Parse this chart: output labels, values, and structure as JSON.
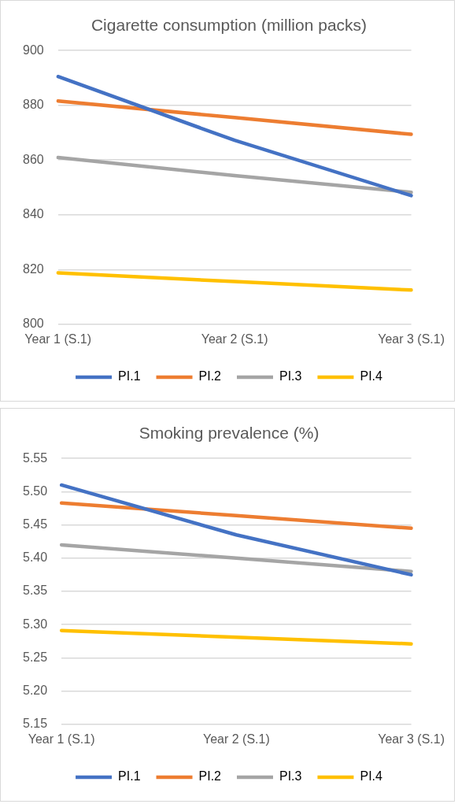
{
  "chart_data": [
    {
      "type": "line",
      "title": "Cigarette consumption (million packs)",
      "categories": [
        "Year 1 (S.1)",
        "Year 2 (S.1)",
        "Year 3 (S.1)"
      ],
      "series": [
        {
          "name": "PI.1",
          "color": "#4472c4",
          "values": [
            890.5,
            867.2,
            847.0
          ]
        },
        {
          "name": "PI.2",
          "color": "#ed7d31",
          "values": [
            881.6,
            875.5,
            869.4
          ]
        },
        {
          "name": "PI.3",
          "color": "#a5a5a5",
          "values": [
            860.9,
            854.3,
            848.2
          ]
        },
        {
          "name": "PI.4",
          "color": "#ffc000",
          "values": [
            818.8,
            815.6,
            812.5
          ]
        }
      ],
      "ylim": [
        800,
        900
      ],
      "yticks": [
        800,
        820,
        840,
        860,
        880,
        900
      ],
      "grid": "y",
      "legend": "bottom",
      "marker": "none",
      "line_style": "solid"
    },
    {
      "type": "line",
      "title": "Smoking prevalence (%)",
      "categories": [
        "Year 1 (S.1)",
        "Year 2 (S.1)",
        "Year 3 (S.1)"
      ],
      "series": [
        {
          "name": "PI.1",
          "color": "#4472c4",
          "values": [
            5.51,
            5.435,
            5.375
          ]
        },
        {
          "name": "PI.2",
          "color": "#ed7d31",
          "values": [
            5.483,
            5.464,
            5.445
          ]
        },
        {
          "name": "PI.3",
          "color": "#a5a5a5",
          "values": [
            5.42,
            5.4,
            5.38
          ]
        },
        {
          "name": "PI.4",
          "color": "#ffc000",
          "values": [
            5.291,
            5.281,
            5.271
          ]
        }
      ],
      "ylim": [
        5.15,
        5.55
      ],
      "yticks": [
        {
          "value": 5.15,
          "label": "5.15"
        },
        {
          "value": 5.2,
          "label": "5.20"
        },
        {
          "value": 5.25,
          "label": "5.25"
        },
        {
          "value": 5.3,
          "label": "5.30"
        },
        {
          "value": 5.35,
          "label": "5.35"
        },
        {
          "value": 5.4,
          "label": "5.40"
        },
        {
          "value": 5.45,
          "label": "5.45"
        },
        {
          "value": 5.5,
          "label": "5.50"
        },
        {
          "value": 5.55,
          "label": "5.55"
        }
      ],
      "grid": "y",
      "legend": "bottom",
      "marker": "none",
      "line_style": "solid"
    }
  ]
}
